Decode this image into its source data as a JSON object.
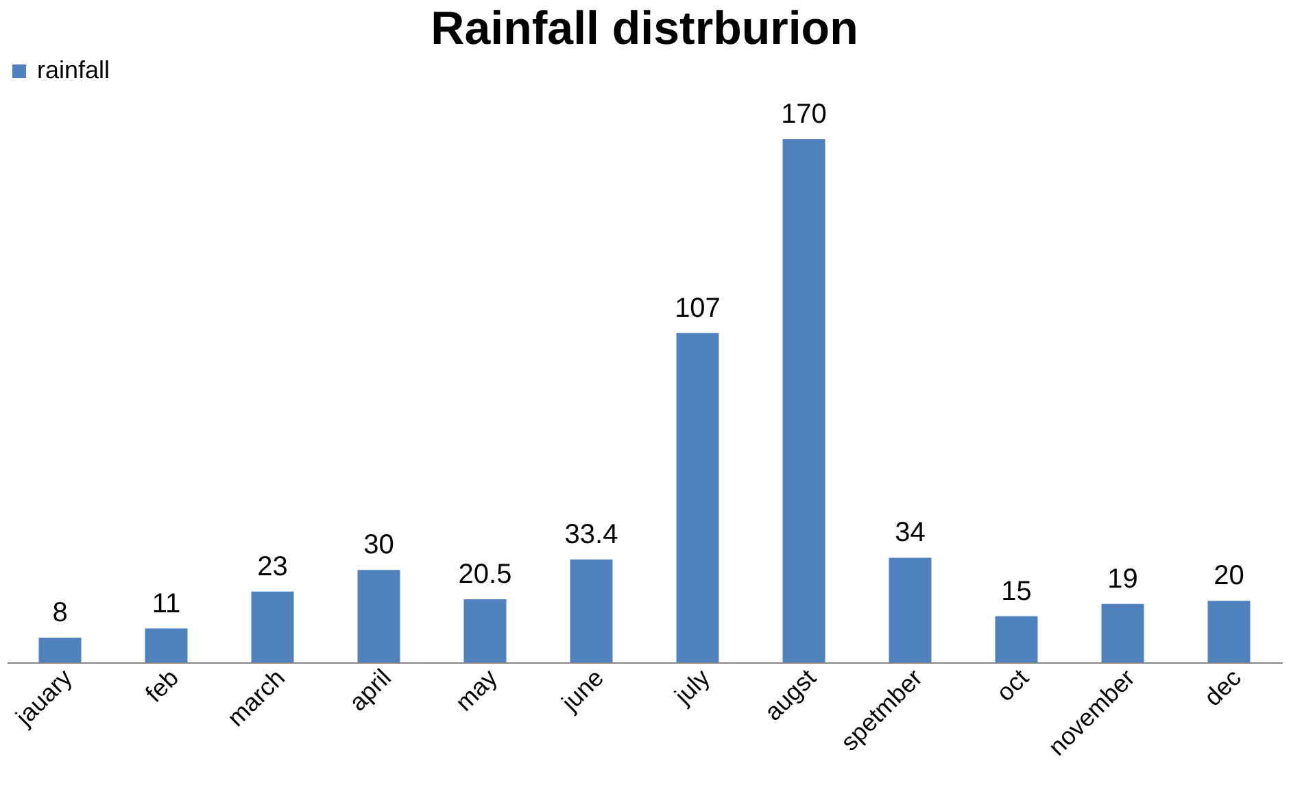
{
  "chart_data": {
    "type": "bar",
    "title": "Rainfall distrburion",
    "categories": [
      "jauary",
      "feb",
      "march",
      "april",
      "may",
      "june",
      "july",
      "augst",
      "spetmber",
      "oct",
      "november",
      "dec"
    ],
    "series": [
      {
        "name": "rainfall",
        "color": "#4f81bd",
        "values": [
          8,
          11,
          23,
          30,
          20.5,
          33.4,
          107,
          170,
          34,
          15,
          19,
          20
        ]
      }
    ],
    "data_labels": true,
    "legend": "top",
    "grid": false
  }
}
